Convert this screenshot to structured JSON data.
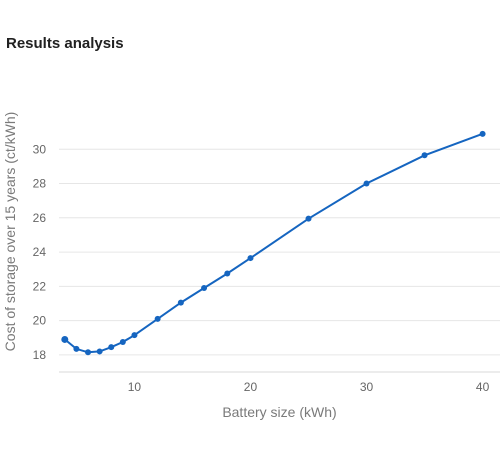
{
  "page": {
    "title": "Results analysis"
  },
  "chart_data": {
    "type": "line",
    "xlabel": "Battery size (kWh)",
    "ylabel": "Cost of storage over 15 years (ct/kWh)",
    "xlim": [
      3.5,
      41.5
    ],
    "ylim": [
      17,
      32
    ],
    "xticks": [
      10,
      20,
      30,
      40
    ],
    "yticks": [
      18,
      20,
      22,
      24,
      26,
      28,
      30
    ],
    "grid": true,
    "color": "#1565c0",
    "series": [
      {
        "x": [
          4,
          5,
          6,
          7,
          8,
          9,
          10,
          12,
          14,
          16,
          18,
          20,
          25,
          30,
          35,
          40
        ],
        "y": [
          18.9,
          18.35,
          18.15,
          18.2,
          18.45,
          18.75,
          19.15,
          20.1,
          21.05,
          21.9,
          22.75,
          23.65,
          25.95,
          28.0,
          29.65,
          30.9
        ]
      }
    ]
  }
}
